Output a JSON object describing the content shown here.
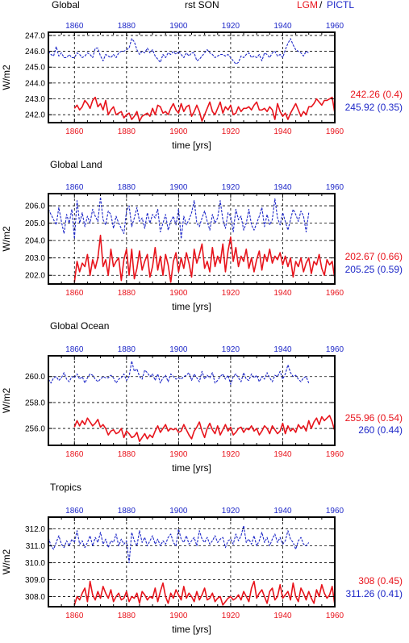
{
  "header": {
    "panel1_title": "Global",
    "center_title": "rst SON",
    "legend_lgm": "LGM",
    "legend_sep": "/",
    "legend_pictl": "PICTL"
  },
  "colors": {
    "lgm": "#e8141c",
    "pictl": "#1e28c8"
  },
  "chart_data": [
    {
      "type": "line",
      "title": "Global",
      "xlabel": "time [yrs]",
      "ylabel": "W/m2",
      "xlim": [
        1850,
        1960
      ],
      "ylim": [
        241.5,
        247.2
      ],
      "yticks": [
        242.0,
        243.0,
        244.0,
        245.0,
        246.0,
        247.0
      ],
      "ytick_labels": [
        "242.0",
        "243.0",
        "244.0",
        "245.0",
        "246.0",
        "247.0"
      ],
      "xticks": [
        1860,
        1880,
        1900,
        1920,
        1940,
        1960
      ],
      "xtick_labels": [
        "1860",
        "1880",
        "1900",
        "1920",
        "1940",
        "1960"
      ],
      "grid": true,
      "series": [
        {
          "name": "LGM",
          "x_start": 1860,
          "x_end": 1960,
          "mean_label": "242.26 (0.4)",
          "values": [
            242.4,
            242.6,
            242.3,
            242.5,
            242.9,
            242.7,
            242.4,
            242.9,
            243.1,
            242.5,
            242.7,
            242.3,
            242.9,
            242.0,
            242.3,
            242.5,
            242.0,
            242.1,
            242.2,
            241.8,
            242.0,
            242.1,
            241.7,
            241.9,
            242.2,
            241.6,
            241.9,
            242.0,
            242.1,
            241.9,
            242.4,
            242.0,
            242.6,
            242.5,
            242.1,
            242.2,
            242.0,
            242.4,
            242.7,
            242.3,
            242.1,
            242.7,
            242.2,
            242.5,
            242.6,
            241.9,
            242.2,
            242.6,
            242.2,
            241.6,
            242.0,
            242.4,
            242.8,
            242.2,
            242.0,
            242.4,
            242.8,
            242.1,
            242.5,
            242.3,
            242.6,
            242.0,
            242.1,
            242.5,
            242.2,
            242.4,
            242.4,
            242.5,
            242.3,
            242.6,
            242.8,
            242.3,
            242.3,
            242.4,
            242.2,
            242.5,
            242.3,
            241.7,
            242.7,
            242.2,
            241.9,
            242.1,
            241.7,
            242.1,
            242.4,
            242.7,
            242.3,
            241.9,
            242.2,
            242.0,
            242.5,
            242.5,
            242.7,
            243.0,
            242.8,
            242.6,
            242.9,
            242.9,
            243.0,
            243.1,
            242.1
          ]
        },
        {
          "name": "PICTL",
          "x_start": 1850,
          "x_end": 1950,
          "mean_label": "245.92 (0.35)",
          "values": [
            246.0,
            245.8,
            245.7,
            246.3,
            245.7,
            245.9,
            245.6,
            245.6,
            245.8,
            245.6,
            245.6,
            245.9,
            245.8,
            245.6,
            245.7,
            245.9,
            245.8,
            245.6,
            246.2,
            246.2,
            245.7,
            245.4,
            245.8,
            245.7,
            245.6,
            245.8,
            245.6,
            245.9,
            246.0,
            246.0,
            246.1,
            246.2,
            246.8,
            246.6,
            246.1,
            245.8,
            246.0,
            245.9,
            246.2,
            245.9,
            246.1,
            245.7,
            245.5,
            245.3,
            245.8,
            245.6,
            245.9,
            245.8,
            246.0,
            245.8,
            246.0,
            245.8,
            245.6,
            245.9,
            245.7,
            245.9,
            245.9,
            245.4,
            245.5,
            245.7,
            245.9,
            246.1,
            245.9,
            245.8,
            245.6,
            245.7,
            245.8,
            245.8,
            245.7,
            245.8,
            245.6,
            245.4,
            245.2,
            245.3,
            245.7,
            245.6,
            245.8,
            245.9,
            245.6,
            245.7,
            245.6,
            245.8,
            245.4,
            245.9,
            245.8,
            245.6,
            245.9,
            246.0,
            245.7,
            245.8,
            245.6,
            246.1,
            246.5,
            246.8,
            246.4,
            246.1,
            246.0,
            245.9,
            245.7,
            246.0,
            245.9
          ]
        }
      ]
    },
    {
      "type": "line",
      "title": "Global Land",
      "xlabel": "time [yrs]",
      "ylabel": "W/m2",
      "xlim": [
        1850,
        1960
      ],
      "ylim": [
        201.5,
        206.7
      ],
      "yticks": [
        202.0,
        203.0,
        204.0,
        205.0,
        206.0
      ],
      "ytick_labels": [
        "202.0",
        "203.0",
        "204.0",
        "205.0",
        "206.0"
      ],
      "xticks": [
        1860,
        1880,
        1900,
        1920,
        1940,
        1960
      ],
      "xtick_labels": [
        "1860",
        "1880",
        "1900",
        "1920",
        "1940",
        "1960"
      ],
      "grid": true,
      "series": [
        {
          "name": "LGM",
          "x_start": 1860,
          "x_end": 1960,
          "mean_label": "202.67 (0.66)",
          "values": [
            201.6,
            202.8,
            202.2,
            202.7,
            202.5,
            203.2,
            202.0,
            202.9,
            202.4,
            203.0,
            204.3,
            202.5,
            202.9,
            202.0,
            203.5,
            202.5,
            202.8,
            203.0,
            201.7,
            202.9,
            203.5,
            202.0,
            203.5,
            201.8,
            202.4,
            203.4,
            202.3,
            202.8,
            203.2,
            201.9,
            202.5,
            203.6,
            202.3,
            203.1,
            202.0,
            203.2,
            202.6,
            201.6,
            202.8,
            203.3,
            202.2,
            203.0,
            202.4,
            203.3,
            202.7,
            201.9,
            203.5,
            202.7,
            203.2,
            203.8,
            202.4,
            202.8,
            202.2,
            203.6,
            202.5,
            203.1,
            202.7,
            203.8,
            202.2,
            203.4,
            204.2,
            202.8,
            203.6,
            202.5,
            203.1,
            202.8,
            203.5,
            202.4,
            203.0,
            202.2,
            202.9,
            203.4,
            202.3,
            203.2,
            202.8,
            203.5,
            202.7,
            203.1,
            202.9,
            203.3,
            202.6,
            203.1,
            202.5,
            203.0,
            201.9,
            202.8,
            202.5,
            203.0,
            202.2,
            202.7,
            203.0,
            202.1,
            202.8,
            202.6,
            203.2,
            202.4,
            202.0,
            202.9,
            202.6,
            202.8,
            201.8
          ]
        },
        {
          "name": "PICTL",
          "x_start": 1850,
          "x_end": 1950,
          "mean_label": "205.25 (0.59)",
          "values": [
            205.8,
            205.5,
            205.2,
            204.9,
            205.9,
            205.1,
            204.4,
            205.5,
            205.0,
            205.8,
            204.1,
            206.3,
            205.0,
            205.6,
            204.8,
            205.4,
            205.0,
            205.8,
            205.4,
            205.1,
            206.5,
            205.2,
            204.9,
            205.7,
            205.5,
            204.7,
            205.4,
            205.0,
            204.7,
            204.4,
            205.7,
            206.0,
            204.8,
            205.3,
            205.9,
            205.1,
            205.3,
            204.7,
            205.6,
            205.0,
            205.5,
            205.3,
            205.8,
            204.5,
            205.0,
            205.5,
            204.6,
            205.1,
            205.4,
            204.9,
            205.8,
            204.1,
            205.4,
            204.9,
            205.2,
            205.6,
            206.3,
            205.0,
            204.8,
            205.3,
            205.7,
            205.1,
            204.6,
            205.5,
            205.0,
            205.3,
            206.3,
            205.2,
            204.7,
            205.6,
            205.4,
            204.5,
            205.8,
            205.2,
            205.4,
            204.6,
            205.0,
            205.8,
            204.9,
            204.6,
            205.0,
            205.4,
            205.9,
            204.8,
            205.5,
            204.9,
            205.2,
            206.4,
            205.3,
            204.9,
            205.6,
            205.1,
            204.6,
            205.2,
            205.8,
            205.5,
            205.1,
            205.7,
            205.4,
            204.5,
            205.6
          ]
        }
      ]
    },
    {
      "type": "line",
      "title": "Global Ocean",
      "xlabel": "time [yrs]",
      "ylabel": "W/m2",
      "xlim": [
        1850,
        1960
      ],
      "ylim": [
        254.7,
        261.6
      ],
      "yticks": [
        256.0,
        258.0,
        260.0
      ],
      "ytick_labels": [
        "256.0",
        "258.0",
        "260.0"
      ],
      "xticks": [
        1860,
        1880,
        1900,
        1920,
        1940,
        1960
      ],
      "xtick_labels": [
        "1860",
        "1880",
        "1900",
        "1920",
        "1940",
        "1960"
      ],
      "grid": true,
      "series": [
        {
          "name": "LGM",
          "x_start": 1860,
          "x_end": 1960,
          "mean_label": "255.96 (0.54)",
          "values": [
            256.1,
            256.6,
            256.2,
            256.6,
            256.3,
            256.8,
            256.5,
            256.2,
            256.4,
            256.7,
            256.1,
            256.3,
            256.0,
            255.5,
            255.8,
            255.9,
            255.6,
            255.7,
            256.0,
            255.3,
            255.8,
            255.6,
            255.3,
            255.4,
            255.7,
            255.0,
            255.3,
            255.6,
            255.2,
            255.5,
            255.3,
            255.8,
            256.2,
            255.7,
            256.0,
            256.3,
            255.8,
            256.0,
            255.9,
            256.0,
            255.7,
            255.8,
            256.3,
            255.9,
            255.5,
            255.2,
            255.8,
            256.1,
            256.5,
            255.8,
            255.3,
            256.0,
            256.4,
            255.9,
            255.6,
            256.2,
            255.5,
            255.9,
            256.3,
            255.8,
            256.1,
            255.5,
            255.7,
            256.0,
            256.1,
            255.7,
            256.0,
            255.9,
            256.2,
            255.8,
            256.0,
            255.5,
            255.8,
            256.2,
            256.0,
            255.6,
            256.2,
            255.9,
            255.6,
            255.8,
            256.4,
            255.6,
            256.2,
            255.8,
            256.0,
            255.7,
            256.3,
            256.0,
            256.2,
            255.8,
            256.6,
            256.0,
            256.5,
            256.8,
            256.3,
            256.9,
            256.6,
            256.8,
            257.0,
            256.5,
            255.8
          ]
        },
        {
          "name": "PICTL",
          "x_start": 1850,
          "x_end": 1950,
          "mean_label": "260 (0.44)",
          "values": [
            259.8,
            259.5,
            259.9,
            260.0,
            259.7,
            259.9,
            260.3,
            259.8,
            259.6,
            260.0,
            259.9,
            260.2,
            259.8,
            260.0,
            259.5,
            259.9,
            260.2,
            260.1,
            259.8,
            259.6,
            259.8,
            260.0,
            259.9,
            259.9,
            260.1,
            259.9,
            259.5,
            259.8,
            259.9,
            260.2,
            259.7,
            260.0,
            261.2,
            260.4,
            260.6,
            260.0,
            259.8,
            260.5,
            260.3,
            260.0,
            260.2,
            259.7,
            260.2,
            259.5,
            259.9,
            260.1,
            259.6,
            260.2,
            260.0,
            259.8,
            259.9,
            259.8,
            260.0,
            260.1,
            260.3,
            259.7,
            260.2,
            259.9,
            259.6,
            260.4,
            259.8,
            260.1,
            259.9,
            260.3,
            259.5,
            259.7,
            260.0,
            260.2,
            259.8,
            260.1,
            259.4,
            260.0,
            260.2,
            259.9,
            259.6,
            260.3,
            259.8,
            259.7,
            260.2,
            259.9,
            260.1,
            259.6,
            260.0,
            259.8,
            260.3,
            259.9,
            259.6,
            260.1,
            260.0,
            260.4,
            259.8,
            260.2,
            260.9,
            260.3,
            260.0,
            260.1,
            259.8,
            259.6,
            259.9,
            260.0,
            259.5
          ]
        }
      ]
    },
    {
      "type": "line",
      "title": "Tropics",
      "xlabel": "time [yrs]",
      "ylabel": "W/m2",
      "xlim": [
        1850,
        1960
      ],
      "ylim": [
        307.4,
        312.7
      ],
      "yticks": [
        308.0,
        309.0,
        310.0,
        311.0,
        312.0
      ],
      "ytick_labels": [
        "308.0",
        "309.0",
        "310.0",
        "311.0",
        "312.0"
      ],
      "xticks": [
        1860,
        1880,
        1900,
        1920,
        1940,
        1960
      ],
      "xtick_labels": [
        "1860",
        "1880",
        "1900",
        "1920",
        "1940",
        "1960"
      ],
      "grid": true,
      "series": [
        {
          "name": "LGM",
          "x_start": 1860,
          "x_end": 1960,
          "mean_label": "308 (0.45)",
          "values": [
            307.5,
            308.0,
            307.8,
            308.2,
            308.5,
            307.7,
            308.9,
            308.1,
            307.8,
            308.3,
            307.9,
            308.6,
            308.2,
            307.9,
            308.4,
            307.7,
            308.0,
            308.2,
            307.8,
            307.9,
            308.3,
            307.7,
            308.0,
            307.9,
            308.2,
            307.6,
            308.3,
            308.1,
            307.8,
            308.0,
            307.9,
            308.5,
            307.7,
            308.3,
            308.8,
            308.0,
            307.6,
            308.2,
            307.9,
            308.4,
            308.1,
            307.8,
            308.6,
            307.9,
            308.2,
            308.0,
            307.7,
            308.3,
            307.8,
            308.1,
            308.5,
            307.8,
            307.9,
            308.2,
            307.7,
            307.9,
            308.0,
            307.5,
            307.7,
            307.9,
            308.0,
            307.8,
            307.9,
            308.1,
            307.8,
            308.3,
            308.0,
            307.7,
            308.5,
            308.9,
            307.9,
            308.2,
            308.4,
            308.0,
            307.6,
            308.3,
            308.5,
            307.8,
            308.0,
            308.7,
            307.9,
            308.1,
            308.3,
            307.8,
            308.8,
            308.0,
            307.7,
            308.5,
            308.2,
            307.8,
            308.3,
            307.9,
            307.6,
            308.4,
            308.0,
            308.7,
            308.2,
            307.9,
            308.1,
            308.6,
            307.5
          ]
        },
        {
          "name": "PICTL",
          "x_start": 1850,
          "x_end": 1950,
          "mean_label": "311.26 (0.41)",
          "values": [
            311.5,
            311.0,
            310.8,
            311.2,
            311.6,
            311.1,
            310.9,
            311.3,
            311.0,
            311.4,
            311.2,
            311.9,
            311.1,
            311.3,
            310.9,
            311.2,
            311.6,
            311.0,
            311.5,
            311.2,
            311.8,
            311.1,
            311.4,
            310.9,
            311.3,
            311.2,
            311.7,
            311.0,
            311.4,
            311.1,
            311.3,
            310.0,
            311.8,
            311.3,
            311.0,
            311.9,
            311.2,
            311.5,
            311.0,
            311.3,
            311.6,
            311.1,
            311.4,
            311.0,
            311.3,
            311.1,
            311.5,
            311.7,
            311.2,
            311.0,
            312.0,
            311.4,
            311.2,
            311.6,
            311.1,
            311.3,
            311.5,
            311.0,
            311.9,
            311.4,
            311.2,
            311.5,
            311.1,
            311.3,
            311.6,
            311.2,
            311.4,
            311.5,
            310.9,
            311.3,
            311.4,
            311.1,
            311.7,
            311.3,
            311.6,
            312.2,
            311.2,
            311.4,
            311.1,
            311.6,
            311.0,
            311.3,
            311.8,
            311.2,
            311.5,
            311.0,
            311.4,
            311.7,
            311.2,
            311.5,
            311.1,
            311.3,
            311.9,
            311.4,
            311.2,
            310.8,
            311.3,
            311.5,
            311.1,
            311.0,
            311.2
          ]
        }
      ]
    }
  ]
}
